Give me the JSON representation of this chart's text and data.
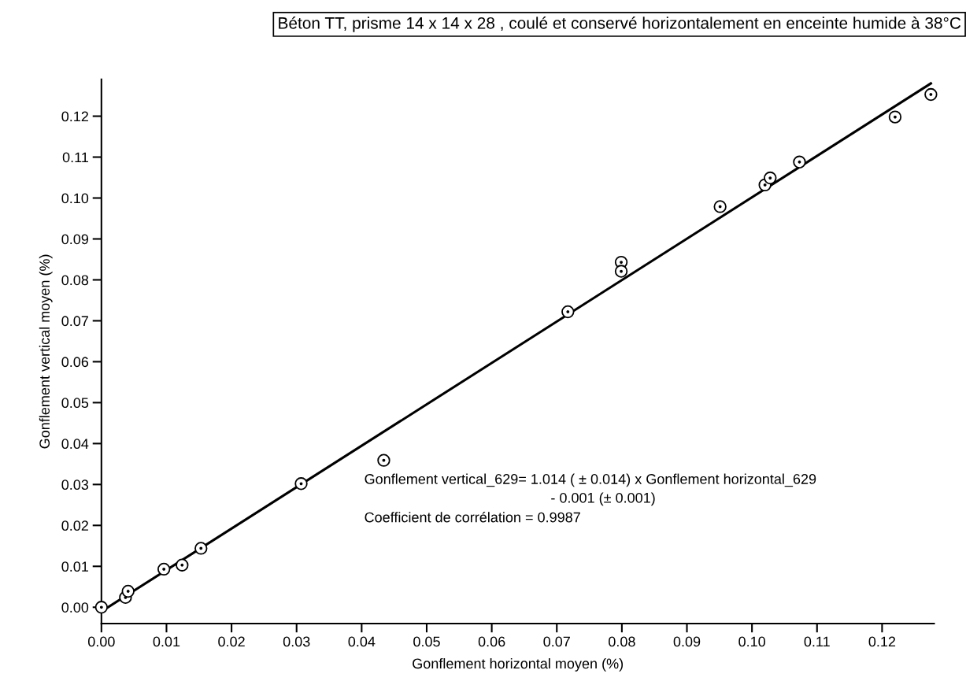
{
  "chart_data": {
    "type": "scatter",
    "title": "Béton TT, prisme 14 x 14 x 28 , coulé et conservé horizontalement en enceinte humide à 38°C",
    "xlabel": "Gonflement horizontal moyen (%)",
    "ylabel": "Gonflement vertical moyen (%)",
    "series": [
      {
        "color": "#000000",
        "marker": "circle",
        "x": [
          0.0,
          0.0037,
          0.0041,
          0.0096,
          0.0124,
          0.0153,
          0.0307,
          0.0434,
          0.0717,
          0.0799,
          0.0799,
          0.0951,
          0.102,
          0.1028,
          0.1073,
          0.122,
          0.1275
        ],
        "values": [
          0.0,
          0.0024,
          0.0039,
          0.0093,
          0.0103,
          0.0144,
          0.0302,
          0.0359,
          0.0722,
          0.0843,
          0.0821,
          0.0979,
          0.1032,
          0.1049,
          0.1088,
          0.1198,
          0.1253
        ]
      },
      {
        "type": "line",
        "color": "#000000",
        "marker": "none",
        "line_style": "solid",
        "x": [
          0.001,
          0.1275
        ],
        "values": [
          0.0,
          0.128
        ]
      }
    ],
    "xlim": [
      0,
      0.128
    ],
    "ylim": [
      -0.004,
      0.129
    ],
    "xticks": [
      {
        "value": 0,
        "label": "0.00"
      },
      0.01,
      0.02,
      0.03,
      0.04,
      0.05,
      0.06,
      0.07,
      0.08,
      0.09,
      {
        "value": 0.1,
        "label": "0.10"
      },
      0.11,
      0.12
    ],
    "yticks": [
      {
        "value": 0,
        "label": "0.00"
      },
      0.01,
      0.02,
      0.03,
      0.04,
      0.05,
      0.06,
      0.07,
      0.08,
      0.09,
      {
        "value": 0.1,
        "label": "0.10"
      },
      0.11,
      0.12
    ],
    "annotations": [
      "Gonflement vertical_629= 1.014 ( ± 0.014) x Gonflement horizontal_629",
      "- 0.001 (± 0.001)",
      "Coefficient de corrélation = 0.9987"
    ],
    "grid": false,
    "legend": false
  }
}
